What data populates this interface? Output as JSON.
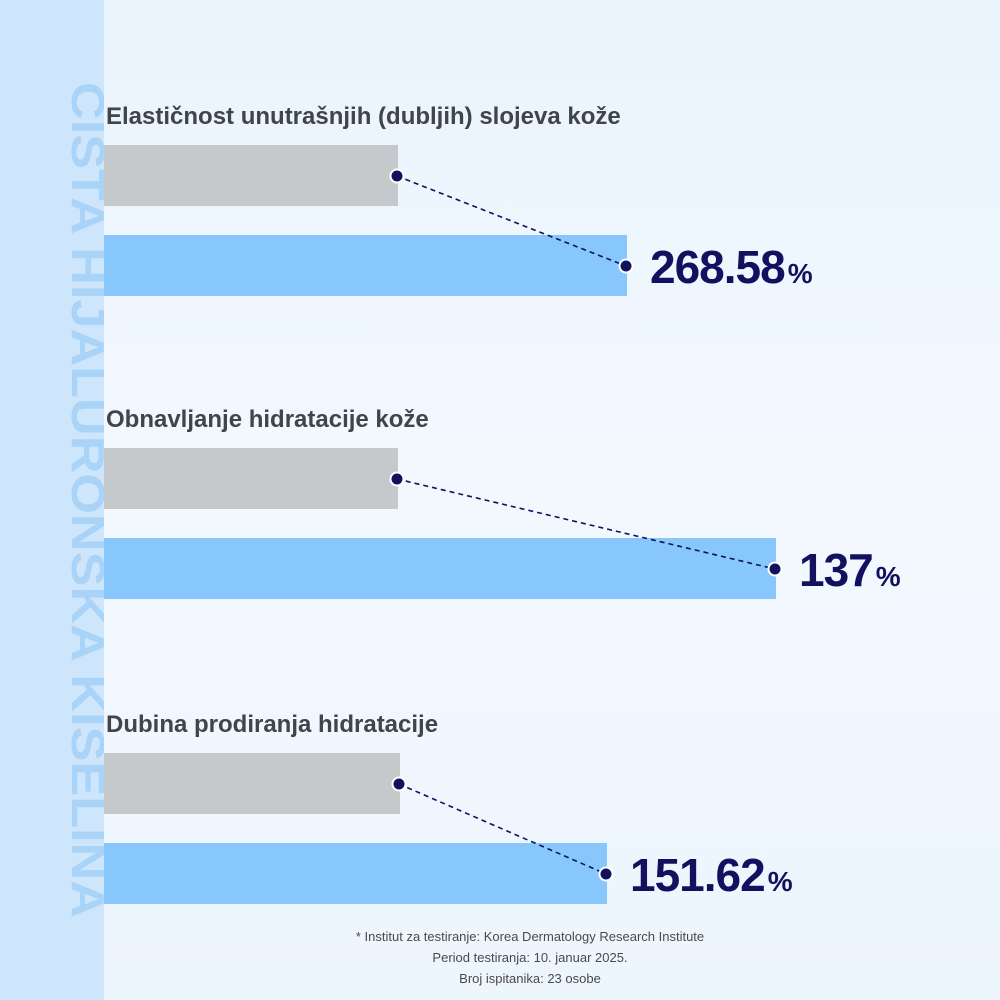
{
  "side_title": "ČISTA HIJALURONSKA KISELINA",
  "chart_data": {
    "type": "bar",
    "unit": "%",
    "groups": [
      {
        "title": "Elastičnost unutrašnjih (dubljih) slojeva kože",
        "baseline_label": "",
        "value": 268.58,
        "value_text": "268.58"
      },
      {
        "title": "Obnavljanje hidratacije kože",
        "baseline_label": "",
        "value": 137,
        "value_text": "137"
      },
      {
        "title": "Dubina prodiranja hidratacije",
        "baseline_label": "",
        "value": 151.62,
        "value_text": "151.62"
      }
    ],
    "baseline_fraction_of_result": [
      0.563,
      0.437,
      0.588
    ]
  },
  "footnote": {
    "line1": "* Institut za testiranje: Korea Dermatology Research Institute",
    "line2": "Period testiranja: 10. januar 2025.",
    "line3": "Broj ispitanika: 23 osobe"
  },
  "colors": {
    "baseline_bar": "#c6c9cc",
    "result_bar": "#88c7fb",
    "accent": "#11115f",
    "title_text": "#3f4549",
    "side_band": "#cde6fb",
    "side_text": "#a9d3f7"
  }
}
